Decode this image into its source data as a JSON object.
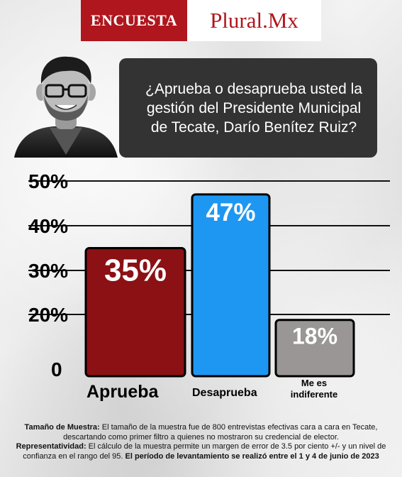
{
  "header": {
    "brand_left": "ENCUESTA",
    "brand_right": "Plural.Mx",
    "colors": {
      "brand_red": "#b0161d",
      "white": "#ffffff"
    }
  },
  "question": {
    "text": "¿Aprueba o desaprueba usted la gestión del Presidente Municipal de Tecate, Darío Benítez Ruiz?",
    "background": "#333333"
  },
  "avatar": {
    "icon": "person-photo"
  },
  "chart_data": {
    "type": "bar",
    "categories": [
      "Aprueba",
      "Desaprueba",
      "Me es indiferente"
    ],
    "values": [
      35,
      47,
      18
    ],
    "value_labels": [
      "35%",
      "47%",
      "18%"
    ],
    "colors": [
      "#8b1114",
      "#1e97f3",
      "#9a9696"
    ],
    "y_ticks": [
      0,
      20,
      30,
      40,
      50
    ],
    "y_tick_labels": [
      "0",
      "20%",
      "30%",
      "40%",
      "50%"
    ],
    "ylim": [
      0,
      50
    ],
    "grid": true,
    "title": "",
    "xlabel": "",
    "ylabel": ""
  },
  "notes": {
    "sample_label": "Tamaño de Muestra:",
    "sample_text": " El tamaño de la muestra fue de 800 entrevistas efectivas cara a cara en Tecate, descartando como primer filtro a quienes no mostraron su credencial de elector.",
    "repr_label": "Representatividad:",
    "repr_text": " El cálculo de la muestra permite un margen de error de 3.5 por ciento +/- y un nivel de confianza en el rango del 95. ",
    "period_text": "El período de levantamiento se realizó entre el 1 y 4 de junio de 2023"
  }
}
